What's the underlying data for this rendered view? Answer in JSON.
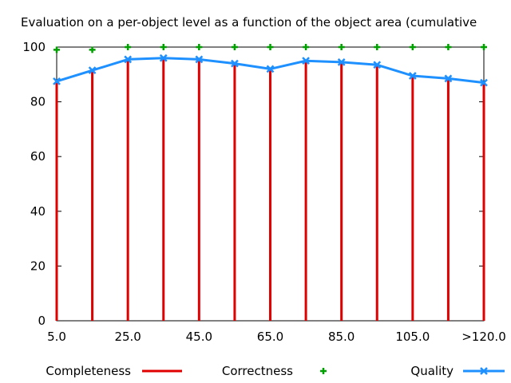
{
  "chart_data": {
    "type": "line",
    "title": "Evaluation on a per-object level as a function of the object area (cumulative",
    "xlabel": "",
    "ylabel": "",
    "categories": [
      "5.0",
      "15.0",
      "25.0",
      "35.0",
      "45.0",
      "55.0",
      "65.0",
      "75.0",
      "85.0",
      "95.0",
      "105.0",
      "115.0",
      ">120.0"
    ],
    "x_tick_labels": [
      "5.0",
      "25.0",
      "45.0",
      "65.0",
      "85.0",
      "105.0",
      ">120.0"
    ],
    "ylim": [
      0,
      100
    ],
    "y_ticks": [
      0,
      20,
      40,
      60,
      80,
      100
    ],
    "grid": false,
    "legend_position": "bottom",
    "series": [
      {
        "name": "Completeness",
        "style": "impulses",
        "color": "#e00000",
        "values": [
          87.5,
          91.5,
          95.5,
          96,
          95.5,
          94,
          92,
          95,
          94.5,
          93.5,
          89.5,
          88.5,
          87
        ]
      },
      {
        "name": "Correctness",
        "style": "points",
        "color": "#00a000",
        "values": [
          99,
          99,
          100,
          100,
          100,
          100,
          100,
          100,
          100,
          100,
          100,
          100,
          100
        ]
      },
      {
        "name": "Quality",
        "style": "linespoints",
        "color": "#1e90ff",
        "values": [
          87.5,
          91.5,
          95.5,
          96,
          95.5,
          94,
          92,
          95,
          94.5,
          93.5,
          89.5,
          88.5,
          87
        ]
      }
    ]
  }
}
